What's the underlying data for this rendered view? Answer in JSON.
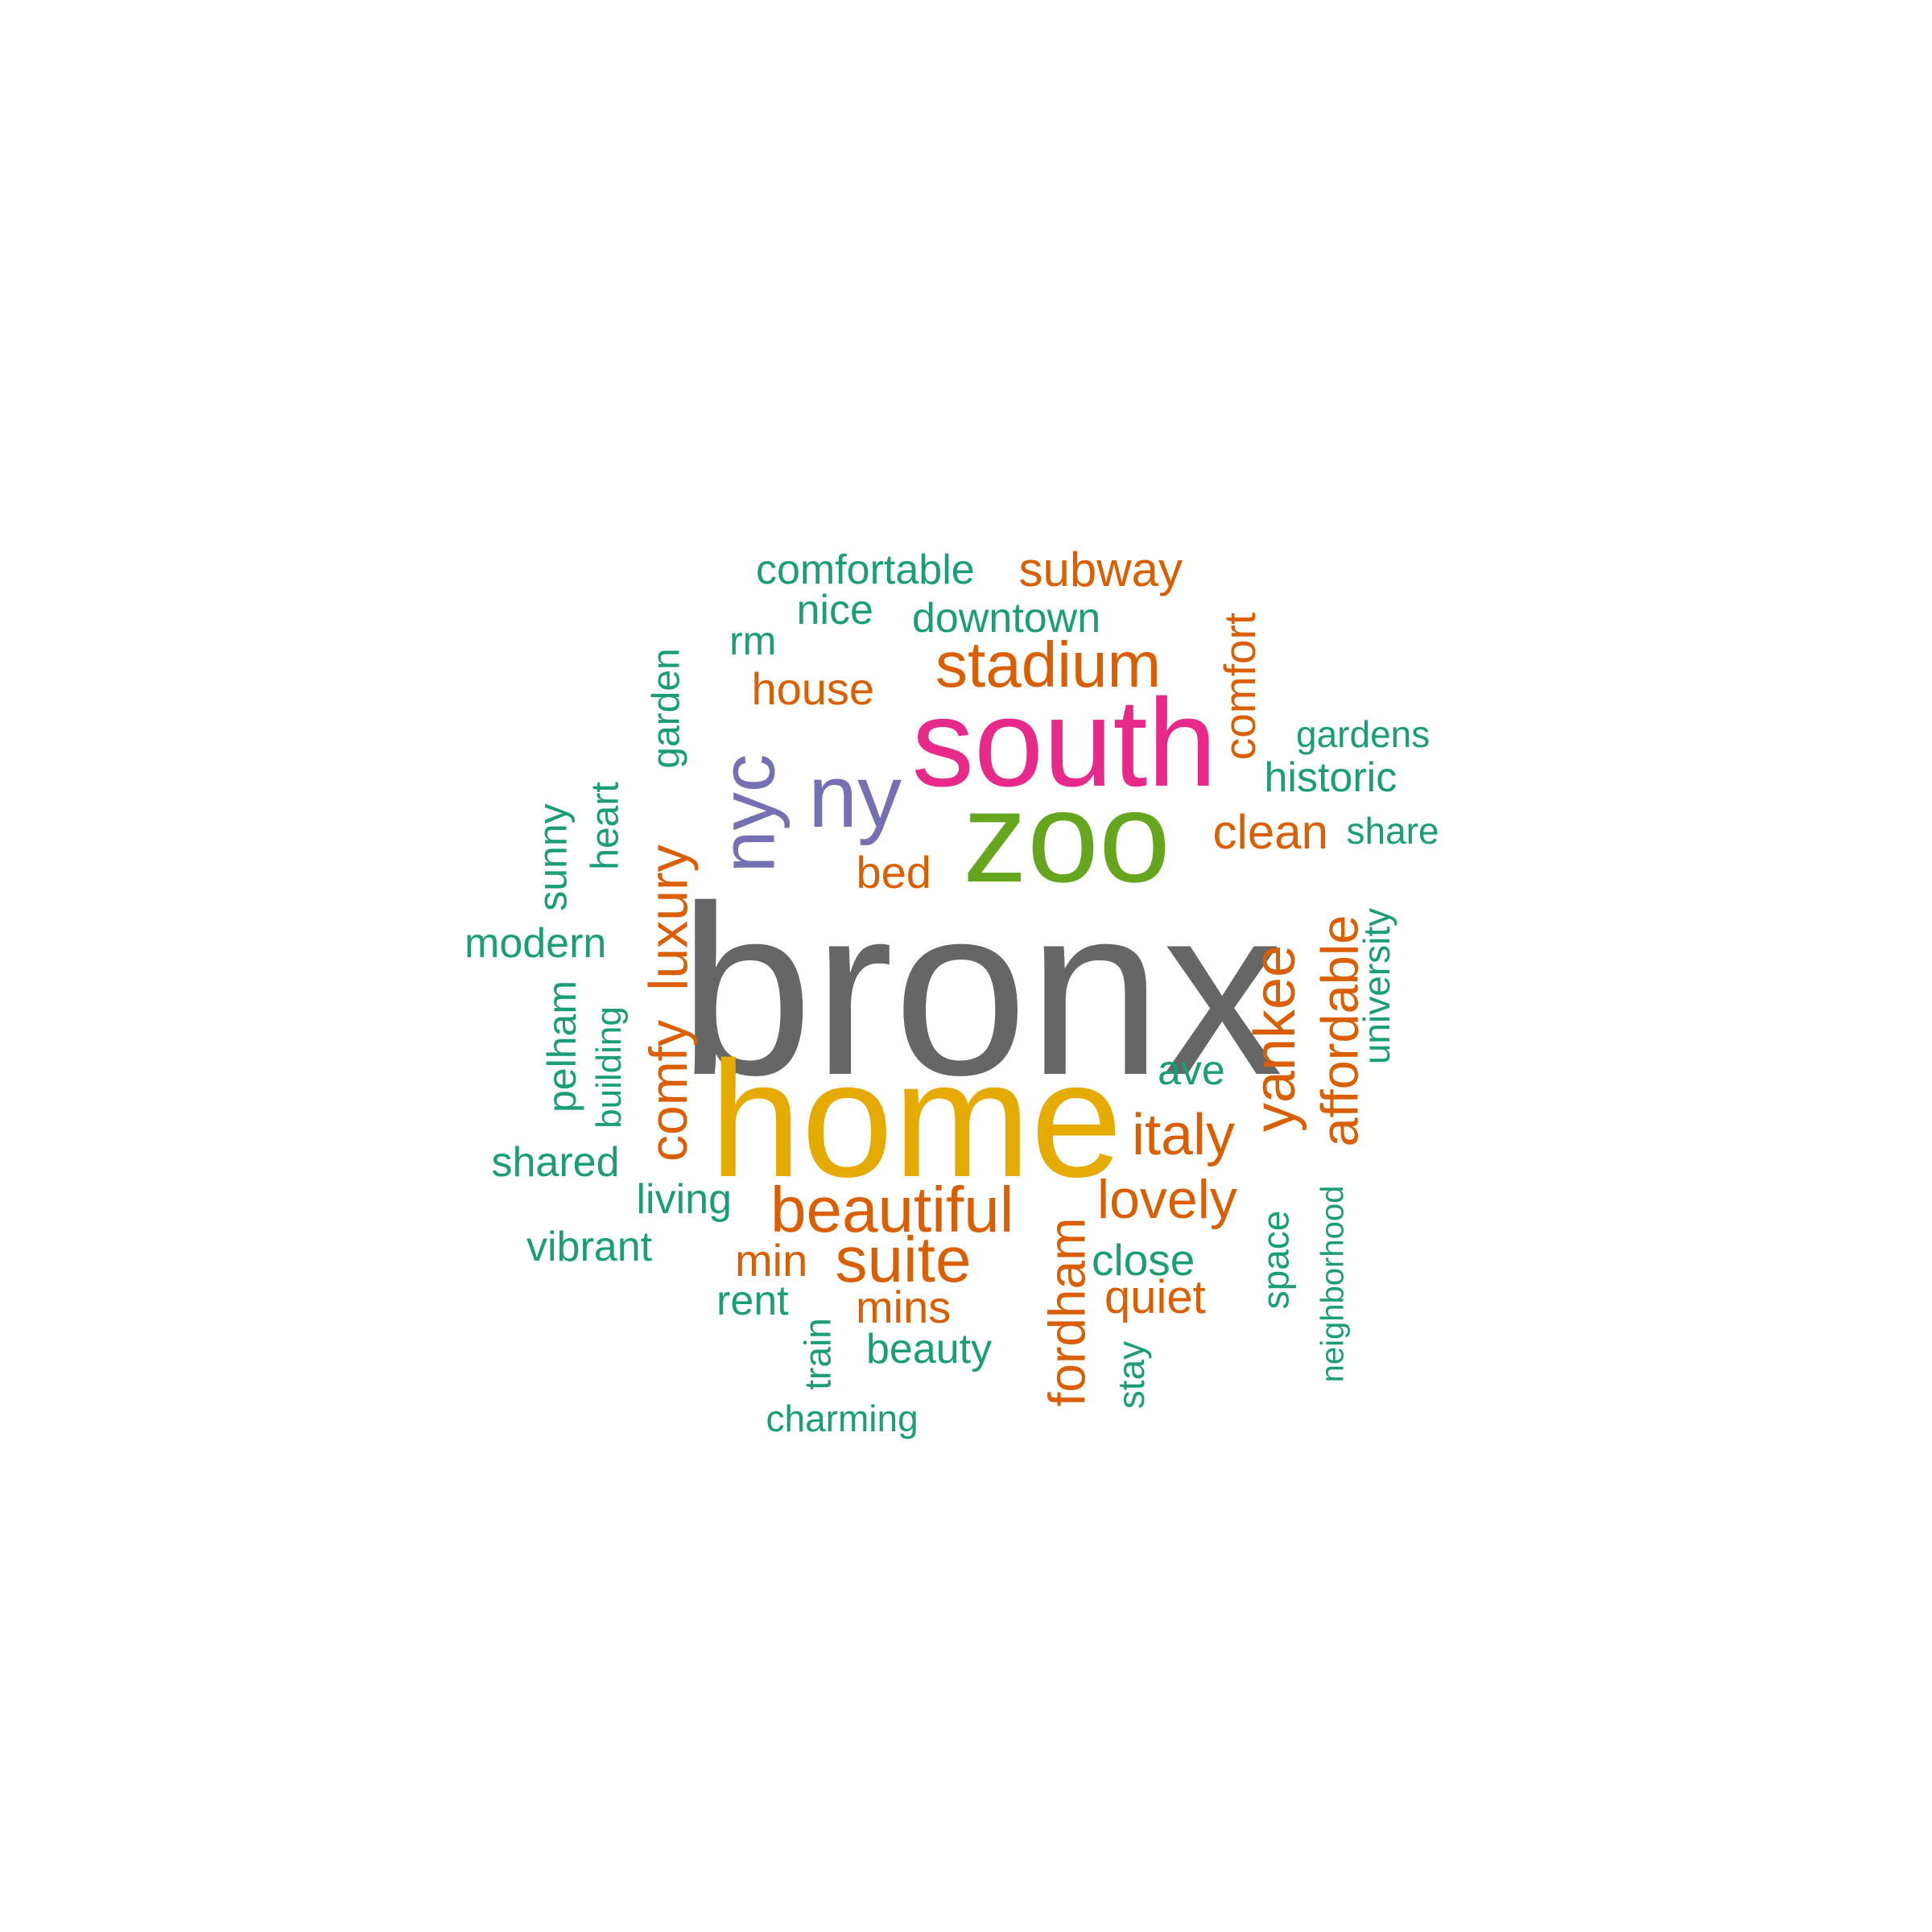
{
  "colors": {
    "teal": "#1b9e77",
    "orange": "#d95f02",
    "purple": "#7570b3",
    "magenta": "#e7298a",
    "green": "#66a61e",
    "gold": "#e6ab02",
    "gray": "#666666"
  },
  "words": [
    {
      "text": "bronx",
      "color": "gray",
      "rotated": false
    },
    {
      "text": "home",
      "color": "gold",
      "rotated": false
    },
    {
      "text": "zoo",
      "color": "green",
      "rotated": false
    },
    {
      "text": "south",
      "color": "magenta",
      "rotated": false
    },
    {
      "text": "ny",
      "color": "purple",
      "rotated": false
    },
    {
      "text": "nyc",
      "color": "purple",
      "rotated": true
    },
    {
      "text": "stadium",
      "color": "orange",
      "rotated": false
    },
    {
      "text": "beautiful",
      "color": "orange",
      "rotated": false
    },
    {
      "text": "suite",
      "color": "orange",
      "rotated": false
    },
    {
      "text": "yankee",
      "color": "orange",
      "rotated": true
    },
    {
      "text": "affordable",
      "color": "orange",
      "rotated": true
    },
    {
      "text": "italy",
      "color": "orange",
      "rotated": false
    },
    {
      "text": "luxury",
      "color": "orange",
      "rotated": true
    },
    {
      "text": "comfy",
      "color": "orange",
      "rotated": true
    },
    {
      "text": "fordham",
      "color": "orange",
      "rotated": true
    },
    {
      "text": "lovely",
      "color": "orange",
      "rotated": false
    },
    {
      "text": "clean",
      "color": "orange",
      "rotated": false
    },
    {
      "text": "subway",
      "color": "orange",
      "rotated": false
    },
    {
      "text": "comfort",
      "color": "orange",
      "rotated": true
    },
    {
      "text": "house",
      "color": "orange",
      "rotated": false
    },
    {
      "text": "bed",
      "color": "orange",
      "rotated": false
    },
    {
      "text": "min",
      "color": "orange",
      "rotated": false
    },
    {
      "text": "mins",
      "color": "orange",
      "rotated": false
    },
    {
      "text": "quiet",
      "color": "orange",
      "rotated": false
    },
    {
      "text": "comfortable",
      "color": "teal",
      "rotated": false
    },
    {
      "text": "nice",
      "color": "teal",
      "rotated": false
    },
    {
      "text": "downtown",
      "color": "teal",
      "rotated": false
    },
    {
      "text": "rm",
      "color": "teal",
      "rotated": false
    },
    {
      "text": "garden",
      "color": "teal",
      "rotated": true
    },
    {
      "text": "gardens",
      "color": "teal",
      "rotated": false
    },
    {
      "text": "historic",
      "color": "teal",
      "rotated": false
    },
    {
      "text": "share",
      "color": "teal",
      "rotated": false
    },
    {
      "text": "sunny",
      "color": "teal",
      "rotated": true
    },
    {
      "text": "heart",
      "color": "teal",
      "rotated": true
    },
    {
      "text": "modern",
      "color": "teal",
      "rotated": false
    },
    {
      "text": "university",
      "color": "teal",
      "rotated": true
    },
    {
      "text": "pelham",
      "color": "teal",
      "rotated": true
    },
    {
      "text": "building",
      "color": "teal",
      "rotated": true
    },
    {
      "text": "ave",
      "color": "teal",
      "rotated": false
    },
    {
      "text": "shared",
      "color": "teal",
      "rotated": false
    },
    {
      "text": "living",
      "color": "teal",
      "rotated": false
    },
    {
      "text": "vibrant",
      "color": "teal",
      "rotated": false
    },
    {
      "text": "space",
      "color": "teal",
      "rotated": true
    },
    {
      "text": "neighborhood",
      "color": "teal",
      "rotated": true
    },
    {
      "text": "close",
      "color": "teal",
      "rotated": false
    },
    {
      "text": "rent",
      "color": "teal",
      "rotated": false
    },
    {
      "text": "train",
      "color": "teal",
      "rotated": true
    },
    {
      "text": "beauty",
      "color": "teal",
      "rotated": false
    },
    {
      "text": "stay",
      "color": "teal",
      "rotated": true
    },
    {
      "text": "charming",
      "color": "teal",
      "rotated": false
    }
  ]
}
